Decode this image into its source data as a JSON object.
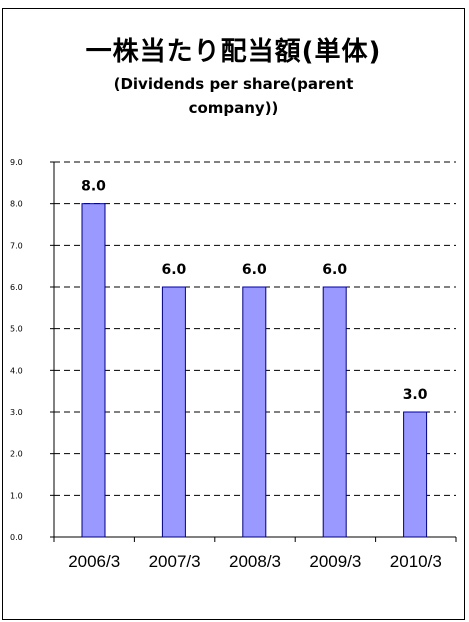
{
  "corner_text": "",
  "chart_data": {
    "type": "bar",
    "title": "一株当たり配当額(単体)",
    "subtitle_lines": [
      "(Dividends per share(parent",
      "company))"
    ],
    "categories": [
      "2006/3",
      "2007/3",
      "2008/3",
      "2009/3",
      "2010/3"
    ],
    "values": [
      8.0,
      6.0,
      6.0,
      6.0,
      3.0
    ],
    "data_labels": [
      "8.0",
      "6.0",
      "6.0",
      "6.0",
      "3.0"
    ],
    "y_ticks": [
      "0.0",
      "1.0",
      "2.0",
      "3.0",
      "4.0",
      "5.0",
      "6.0",
      "7.0",
      "8.0",
      "9.0"
    ],
    "ylim": [
      0,
      9
    ],
    "xlabel": "",
    "ylabel": "",
    "grid": "dashed horizontal",
    "legend": "none",
    "colors": {
      "bar_fill": "#9999ff",
      "bar_stroke": "#000080",
      "axis": "#000000"
    }
  }
}
